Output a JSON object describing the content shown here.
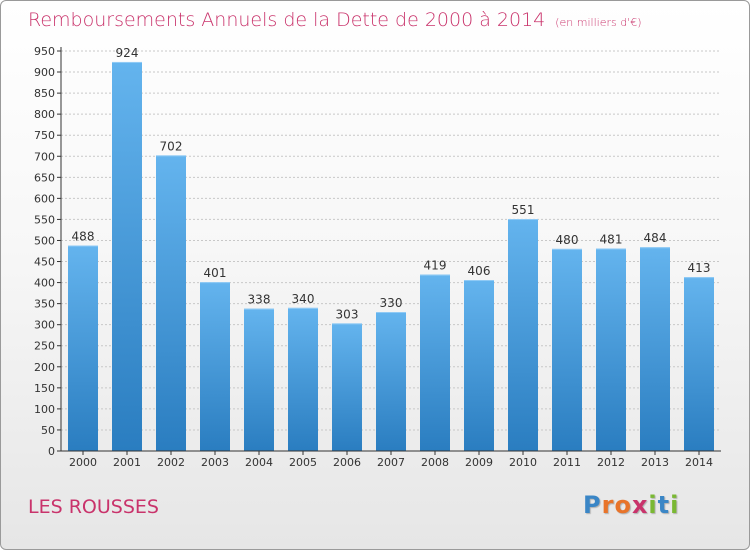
{
  "title": "Remboursements Annuels de la Dette de 2000 à 2014",
  "subtitle_unit": "(en milliers d'€)",
  "commune": "LES ROUSSES",
  "logo_text": "Proxiti",
  "colors": {
    "title": "#c9336b",
    "bar_top": "#64b4ee",
    "bar_bottom": "#2a7dc0",
    "grid": "#c8c8c8",
    "axis": "#333333"
  },
  "chart_data": {
    "type": "bar",
    "categories": [
      "2000",
      "2001",
      "2002",
      "2003",
      "2004",
      "2005",
      "2006",
      "2007",
      "2008",
      "2009",
      "2010",
      "2011",
      "2012",
      "2013",
      "2014"
    ],
    "values": [
      488,
      924,
      702,
      401,
      338,
      340,
      303,
      330,
      419,
      406,
      551,
      480,
      481,
      484,
      413
    ],
    "ylim": [
      0,
      950
    ],
    "yticks": [
      0,
      50,
      100,
      150,
      200,
      250,
      300,
      350,
      400,
      450,
      500,
      550,
      600,
      650,
      700,
      750,
      800,
      850,
      900,
      950
    ],
    "grid": true,
    "data_labels": true
  }
}
